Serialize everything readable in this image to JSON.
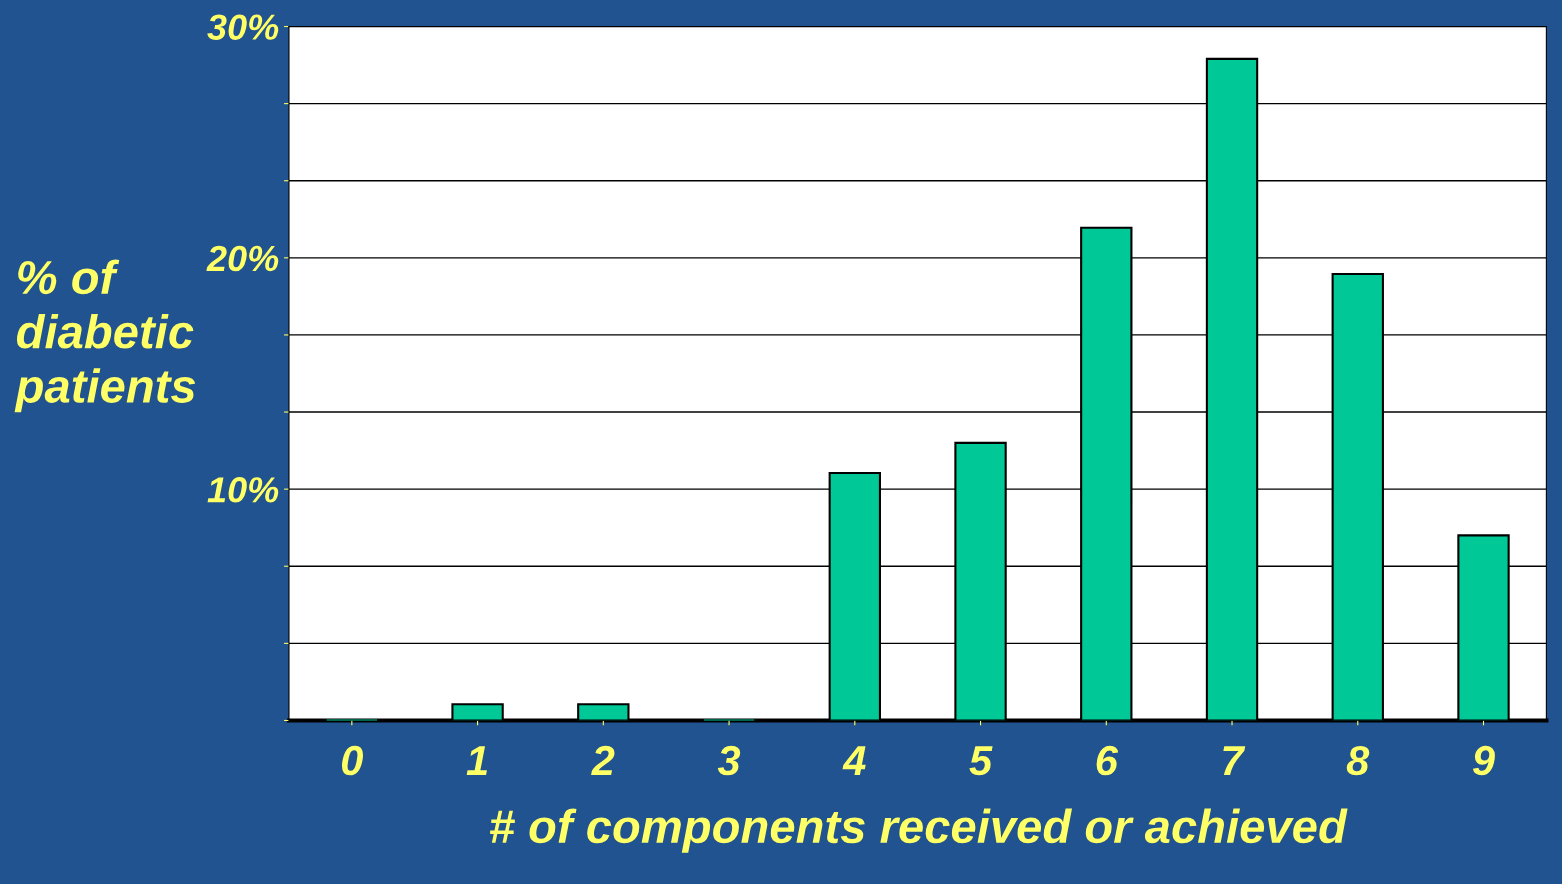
{
  "chart_data": {
    "type": "bar",
    "xlabel": "# of components received or achieved",
    "ylabel": "% of\ndiabetic\npatients",
    "categories": [
      "0",
      "1",
      "2",
      "3",
      "4",
      "5",
      "6",
      "7",
      "8",
      "9"
    ],
    "values": [
      0,
      0.7,
      0.7,
      0,
      10.7,
      12.0,
      21.3,
      28.6,
      19.3,
      8.0
    ],
    "color": "#00c896",
    "ylim": [
      0,
      30
    ],
    "yticks": [
      {
        "value": 0,
        "label": null
      },
      {
        "value": 3.333,
        "label": null
      },
      {
        "value": 6.667,
        "label": null
      },
      {
        "value": 10,
        "label": "10%"
      },
      {
        "value": 13.333,
        "label": null
      },
      {
        "value": 16.667,
        "label": null
      },
      {
        "value": 20,
        "label": "20%"
      },
      {
        "value": 23.333,
        "label": null
      },
      {
        "value": 26.667,
        "label": null
      },
      {
        "value": 30,
        "label": "30%"
      }
    ],
    "grid": "y"
  }
}
